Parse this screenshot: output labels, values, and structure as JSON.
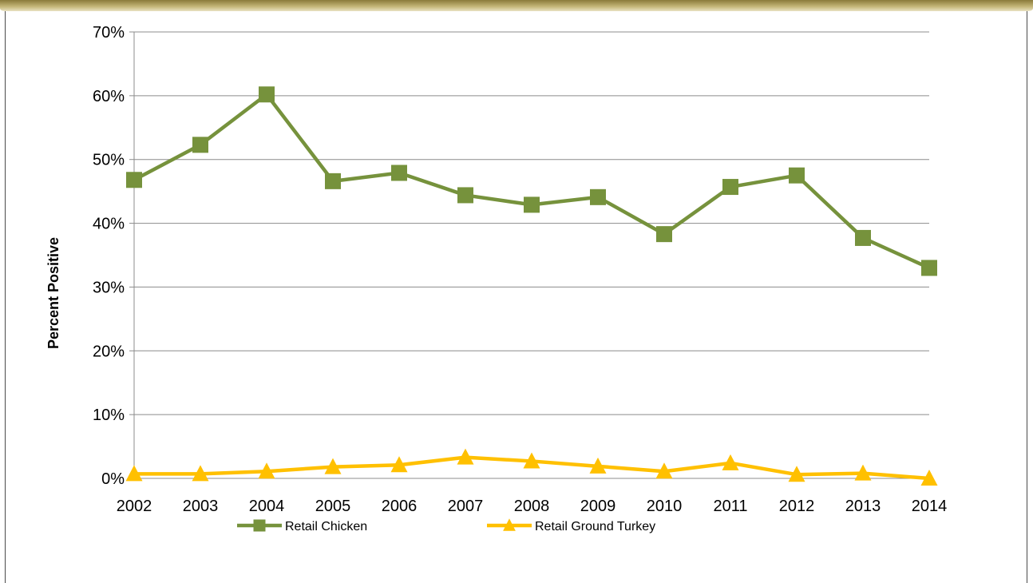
{
  "chart_data": {
    "type": "line",
    "title": "",
    "xlabel": "",
    "ylabel": "Percent Positive",
    "categories": [
      "2002",
      "2003",
      "2004",
      "2005",
      "2006",
      "2007",
      "2008",
      "2009",
      "2010",
      "2011",
      "2012",
      "2013",
      "2014"
    ],
    "ylim": [
      0,
      70
    ],
    "yticks": [
      "0%",
      "10%",
      "20%",
      "30%",
      "40%",
      "50%",
      "60%",
      "70%"
    ],
    "grid": true,
    "legend_position": "bottom",
    "series": [
      {
        "name": "Retail Chicken",
        "marker": "square",
        "color": "#76923C",
        "values": [
          46.8,
          52.3,
          60.2,
          46.6,
          47.9,
          44.4,
          42.9,
          44.1,
          38.3,
          45.7,
          47.5,
          37.7,
          33.0
        ]
      },
      {
        "name": "Retail Ground Turkey",
        "marker": "triangle",
        "color": "#FFC000",
        "values": [
          0.7,
          0.7,
          1.1,
          1.8,
          2.1,
          3.3,
          2.7,
          1.9,
          1.1,
          2.4,
          0.6,
          0.8,
          0.0
        ]
      }
    ]
  }
}
